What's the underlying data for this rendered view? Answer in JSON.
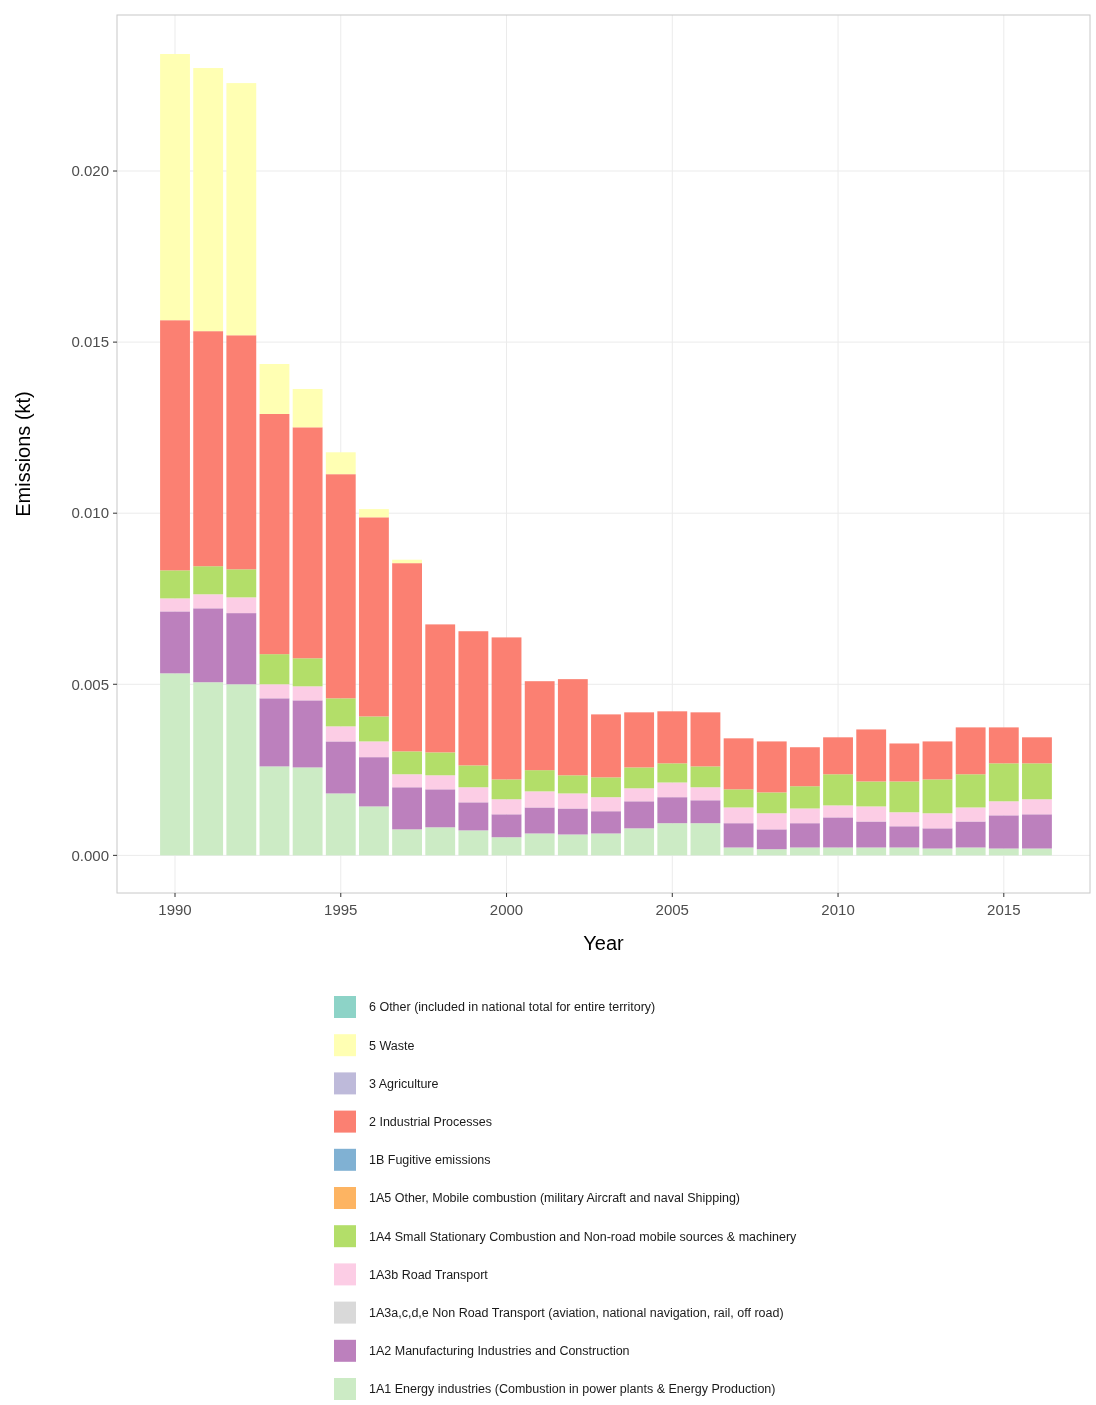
{
  "chart_data": {
    "type": "bar",
    "stacked": true,
    "xlabel": "Year",
    "ylabel": "Emissions (kt)",
    "legend": "bottom",
    "grid": true,
    "x": [
      1990,
      1991,
      1992,
      1993,
      1994,
      1995,
      1996,
      1997,
      1998,
      1999,
      2000,
      2001,
      2002,
      2003,
      2004,
      2005,
      2006,
      2007,
      2008,
      2009,
      2010,
      2011,
      2012,
      2013,
      2014,
      2015,
      2016
    ],
    "xlim": [
      1988.25,
      2017.6
    ],
    "xticks": [
      1990,
      1995,
      2000,
      2005,
      2010,
      2015
    ],
    "ylim": [
      -0.0011,
      0.02456
    ],
    "yticks": [
      {
        "value": 0,
        "label": "0.000"
      },
      {
        "value": 0.005,
        "label": "0.005"
      },
      {
        "value": 0.01,
        "label": "0.010"
      },
      {
        "value": 0.015,
        "label": "0.015"
      },
      {
        "value": 0.02,
        "label": "0.020"
      }
    ],
    "series": [
      {
        "name": "1A1 Energy industries (Combustion in power plants & Energy Production)",
        "color": "#ccebc5",
        "values": [
          0.00532,
          0.00506,
          0.005,
          0.0026,
          0.00257,
          0.00181,
          0.00143,
          0.00076,
          0.00082,
          0.00073,
          0.00053,
          0.00064,
          0.00061,
          0.00064,
          0.00079,
          0.00094,
          0.00094,
          0.00023,
          0.00018,
          0.00023,
          0.00023,
          0.00023,
          0.00023,
          0.0002,
          0.00023,
          0.0002,
          0.0002
        ]
      },
      {
        "name": "1A2 Manufacturing Industries and Construction",
        "color": "#bc80bd",
        "values": [
          0.00181,
          0.00216,
          0.00208,
          0.00199,
          0.00196,
          0.00152,
          0.00144,
          0.00123,
          0.00111,
          0.00082,
          0.00067,
          0.00076,
          0.00076,
          0.00065,
          0.00079,
          0.00076,
          0.00067,
          0.00071,
          0.00058,
          0.00071,
          0.00088,
          0.00076,
          0.00062,
          0.00059,
          0.00076,
          0.00097,
          0.001
        ]
      },
      {
        "name": "1A3a,c,d,e Non Road Transport (aviation, national navigation, rail, off road)",
        "color": "#d9d9d9",
        "values": [
          0,
          0,
          0,
          0,
          0,
          0,
          0,
          0,
          0,
          0,
          0,
          0,
          0,
          0,
          0,
          0,
          0,
          0,
          0,
          0,
          0,
          0,
          0,
          0,
          0,
          0,
          0
        ]
      },
      {
        "name": "1A3b Road Transport",
        "color": "#fccde5",
        "values": [
          0.00038,
          0.00041,
          0.00046,
          0.00041,
          0.00041,
          0.00044,
          0.00046,
          0.00038,
          0.00041,
          0.00044,
          0.00044,
          0.00047,
          0.00044,
          0.00041,
          0.00038,
          0.00043,
          0.00038,
          0.00046,
          0.00047,
          0.00043,
          0.00035,
          0.00044,
          0.00041,
          0.00044,
          0.00041,
          0.00041,
          0.00044
        ]
      },
      {
        "name": "1A4 Small Stationary Combustion and Non-road mobile sources & machinery",
        "color": "#b3de69",
        "values": [
          0.00082,
          0.00082,
          0.00082,
          0.00088,
          0.00082,
          0.00082,
          0.00073,
          0.00067,
          0.00067,
          0.00064,
          0.00058,
          0.00062,
          0.00053,
          0.00058,
          0.00061,
          0.00056,
          0.00061,
          0.00053,
          0.00061,
          0.00065,
          0.00091,
          0.00073,
          0.0009,
          0.00099,
          0.00097,
          0.00111,
          0.00105
        ]
      },
      {
        "name": "1A5 Other, Mobile combustion (military Aircraft and naval Shipping)",
        "color": "#fdb462",
        "values": [
          0,
          0,
          0,
          0,
          0,
          0,
          0,
          0,
          0,
          0,
          0,
          0,
          0,
          0,
          0,
          0,
          0,
          0,
          0,
          0,
          0,
          0,
          0,
          0,
          0,
          0,
          0
        ]
      },
      {
        "name": "1B Fugitive emissions",
        "color": "#80b1d3",
        "values": [
          0,
          0,
          0,
          0,
          0,
          0,
          0,
          0,
          0,
          0,
          0,
          0,
          0,
          0,
          0,
          0,
          0,
          0,
          0,
          0,
          0,
          0,
          0,
          0,
          0,
          0,
          0
        ]
      },
      {
        "name": "2 Industrial Processes",
        "color": "#fb8072",
        "values": [
          0.00731,
          0.00687,
          0.00684,
          0.00702,
          0.00675,
          0.00655,
          0.00582,
          0.0055,
          0.00374,
          0.00392,
          0.00415,
          0.0026,
          0.00281,
          0.00184,
          0.00161,
          0.00152,
          0.00158,
          0.00149,
          0.00149,
          0.00114,
          0.00108,
          0.00152,
          0.00111,
          0.00111,
          0.00137,
          0.00105,
          0.00076
        ]
      },
      {
        "name": "3 Agriculture",
        "color": "#bebada",
        "values": [
          0,
          0,
          0,
          0,
          0,
          0,
          0,
          0,
          0,
          0,
          0,
          0,
          0,
          0,
          0,
          0,
          0,
          0,
          0,
          0,
          0,
          0,
          0,
          0,
          0,
          0,
          0
        ]
      },
      {
        "name": "5 Waste",
        "color": "#ffffb3",
        "values": [
          0.00778,
          0.00769,
          0.00737,
          0.00146,
          0.00112,
          0.00064,
          0.00024,
          0.0001,
          0,
          0,
          0,
          0,
          0,
          0,
          0,
          0,
          0,
          0,
          0,
          0,
          0,
          0,
          0,
          0,
          0,
          0,
          0
        ]
      },
      {
        "name": "6 Other (included in national total for entire territory)",
        "color": "#8dd3c7",
        "values": [
          0,
          0,
          0,
          0,
          0,
          0,
          0,
          0,
          0,
          0,
          0,
          0,
          0,
          0,
          0,
          0,
          0,
          0,
          0,
          0,
          0,
          0,
          0,
          0,
          0,
          0,
          0
        ]
      }
    ]
  }
}
